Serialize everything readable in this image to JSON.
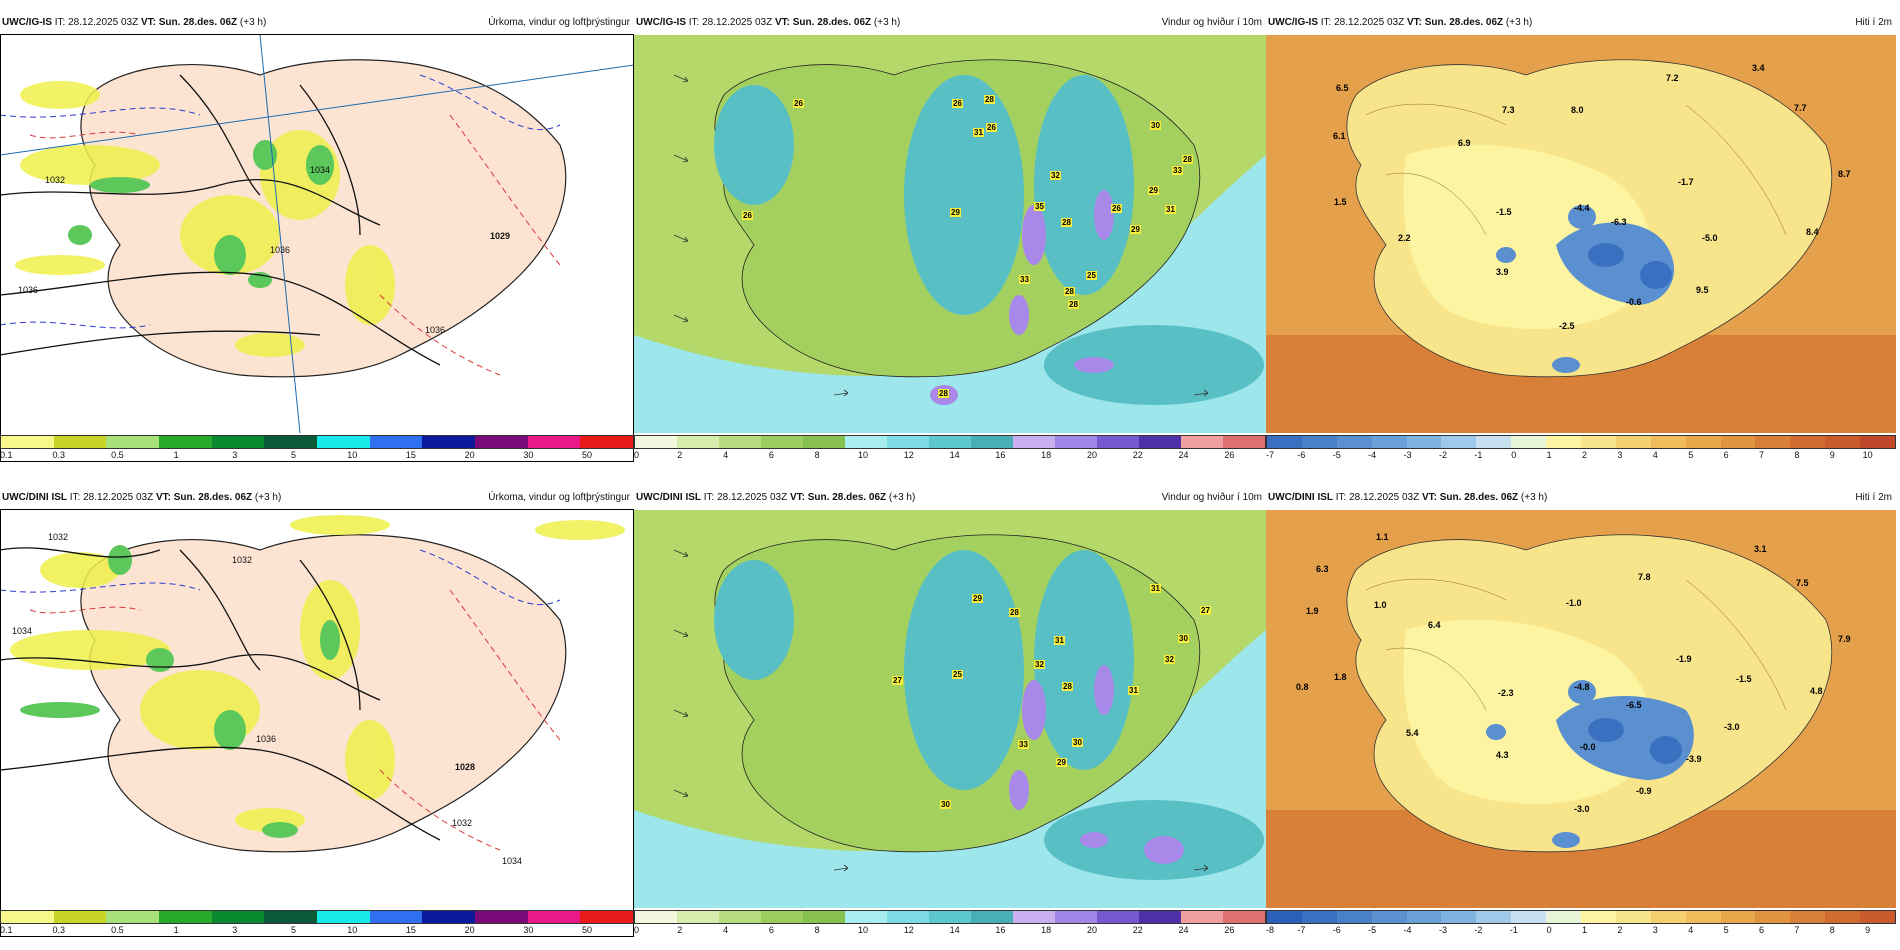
{
  "rows": [
    {
      "model": "UWC/IG-IS",
      "it_label": "IT:",
      "it": "28.12.2025 03Z",
      "vt_label": "VT:",
      "vt": "Sun. 28.des. 06Z",
      "lead": "(+3 h)",
      "panels": [
        {
          "field": "Úrkoma, vindur og loftþrýstingur",
          "legend_ticks": [
            "0.1",
            "0.3",
            "0.5",
            "1",
            "3",
            "5",
            "10",
            "15",
            "20",
            "30",
            "50"
          ],
          "legend_colors": [
            "#f7f78a",
            "#c8d42a",
            "#a8e07a",
            "#28a828",
            "#0a8a30",
            "#0a5a3a",
            "#18e8e8",
            "#3070f0",
            "#0a1a9a",
            "#7a0a7a",
            "#e81a8a",
            "#e81a1a"
          ],
          "isobars": [
            "1032",
            "1034",
            "1036",
            "1036",
            "1036",
            "1029"
          ]
        },
        {
          "field": "Vindur og hviður í 10m",
          "legend_ticks": [
            "0",
            "2",
            "4",
            "6",
            "8",
            "10",
            "12",
            "14",
            "16",
            "18",
            "20",
            "22",
            "24",
            "26"
          ],
          "legend_colors": [
            "#f4f8e0",
            "#d8ecae",
            "#b8dc80",
            "#9ccc5c",
            "#88c050",
            "#a8eef0",
            "#80dce4",
            "#5cc8cc",
            "#48b0b4",
            "#c8b0f0",
            "#a088e8",
            "#7858d0",
            "#5030a8",
            "#f0a0a0",
            "#e07070"
          ],
          "gusts": [
            "26",
            "26",
            "28",
            "31",
            "26",
            "30",
            "32",
            "35",
            "28",
            "26",
            "29",
            "31",
            "29",
            "28",
            "33",
            "26",
            "29",
            "28",
            "33",
            "28",
            "25",
            "28"
          ]
        },
        {
          "field": "Hiti í 2m",
          "legend_ticks": [
            "-7",
            "-6",
            "-5",
            "-4",
            "-3",
            "-2",
            "-1",
            "0",
            "1",
            "2",
            "3",
            "4",
            "5",
            "6",
            "7",
            "8",
            "9",
            "10"
          ],
          "legend_colors": [
            "#3a70c0",
            "#4a80c8",
            "#5a90d0",
            "#6aa0d8",
            "#80b4e0",
            "#a0c8e8",
            "#c8e0f0",
            "#e8f4d8",
            "#fcf4a0",
            "#f8e48a",
            "#f4d070",
            "#f0bc5c",
            "#e8a84a",
            "#e09440",
            "#d88038",
            "#d06c30",
            "#c85a2c",
            "#c0482a"
          ],
          "temps": [
            "6.5",
            "6.1",
            "6.9",
            "1.5",
            "2.2",
            "3.9",
            "7.3",
            "8.0",
            "7.2",
            "3.4",
            "7.7",
            "8.7",
            "8.4",
            "-1.7",
            "-1.5",
            "-4.4",
            "-6.3",
            "-5.0",
            "-0.6",
            "9.5",
            "-2.5"
          ]
        }
      ]
    },
    {
      "model": "UWC/DINI ISL",
      "it_label": "IT:",
      "it": "28.12.2025 03Z",
      "vt_label": "VT:",
      "vt": "Sun. 28.des. 06Z",
      "lead": "(+3 h)",
      "panels": [
        {
          "field": "Úrkoma, vindur og loftþrýstingur",
          "legend_ticks": [
            "0.1",
            "0.3",
            "0.5",
            "1",
            "3",
            "5",
            "10",
            "15",
            "20",
            "30",
            "50"
          ],
          "legend_colors": [
            "#f7f78a",
            "#c8d42a",
            "#a8e07a",
            "#28a828",
            "#0a8a30",
            "#0a5a3a",
            "#18e8e8",
            "#3070f0",
            "#0a1a9a",
            "#7a0a7a",
            "#e81a8a",
            "#e81a1a"
          ],
          "isobars": [
            "1032",
            "1032",
            "1034",
            "1036",
            "1028",
            "1032",
            "1034"
          ]
        },
        {
          "field": "Vindur og hviður í 10m",
          "legend_ticks": [
            "0",
            "2",
            "4",
            "6",
            "8",
            "10",
            "12",
            "14",
            "16",
            "18",
            "20",
            "22",
            "24",
            "26"
          ],
          "legend_colors": [
            "#f4f8e0",
            "#d8ecae",
            "#b8dc80",
            "#9ccc5c",
            "#88c050",
            "#a8eef0",
            "#80dce4",
            "#5cc8cc",
            "#48b0b4",
            "#c8b0f0",
            "#a088e8",
            "#7858d0",
            "#5030a8",
            "#f0a0a0",
            "#e07070"
          ],
          "gusts": [
            "29",
            "28",
            "31",
            "31",
            "27",
            "30",
            "27",
            "25",
            "32",
            "28",
            "32",
            "31",
            "33",
            "30",
            "29",
            "30"
          ]
        },
        {
          "field": "Hiti í 2m",
          "legend_ticks": [
            "-8",
            "-7",
            "-6",
            "-5",
            "-4",
            "-3",
            "-2",
            "-1",
            "0",
            "1",
            "2",
            "3",
            "4",
            "5",
            "6",
            "7",
            "8",
            "9"
          ],
          "legend_colors": [
            "#2a60b8",
            "#3a70c0",
            "#4a80c8",
            "#5a90d0",
            "#6aa0d8",
            "#80b4e0",
            "#a0c8e8",
            "#c8e0f0",
            "#e8f4d8",
            "#fcf4a0",
            "#f8e48a",
            "#f4d070",
            "#f0bc5c",
            "#e8a84a",
            "#e09440",
            "#d88038",
            "#d06c30",
            "#c85a2c"
          ],
          "temps": [
            "1.1",
            "6.3",
            "1.9",
            "1.0",
            "6.4",
            "1.8",
            "0.8",
            "5.4",
            "4.3",
            "7.8",
            "3.1",
            "7.5",
            "7.9",
            "-1.0",
            "-1.9",
            "-1.5",
            "-2.3",
            "-4.8",
            "-6.5",
            "-3.0",
            "-0.0",
            "-3.9",
            "-0.9",
            "-3.0",
            "4.8"
          ]
        }
      ]
    }
  ]
}
